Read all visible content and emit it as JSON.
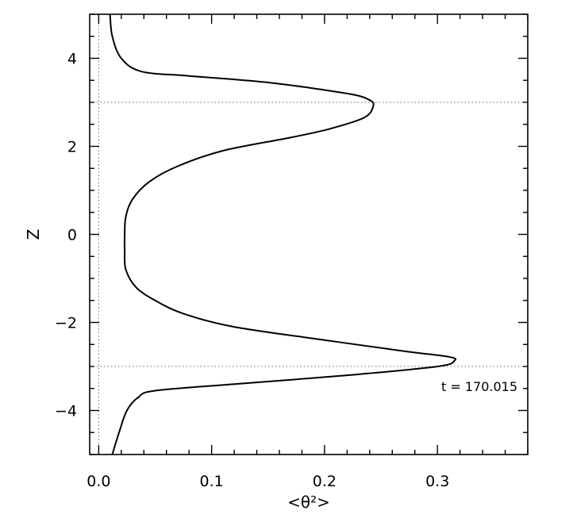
{
  "chart_data": {
    "type": "line",
    "title": "",
    "xlabel": "<θ²>",
    "ylabel": "Z",
    "xlim": [
      -0.008,
      0.38
    ],
    "ylim": [
      -5,
      5
    ],
    "xticks": [
      0.0,
      0.1,
      0.2,
      0.3
    ],
    "xtick_labels": [
      "0.0",
      "0.1",
      "0.2",
      "0.3"
    ],
    "yticks": [
      -4,
      -2,
      0,
      2,
      4
    ],
    "ytick_labels": [
      "−4",
      "−2",
      "0",
      "2",
      "4"
    ],
    "grid": false,
    "annotation": "t = 170.015",
    "reference_lines": {
      "vertical_x": [
        0.0
      ],
      "horizontal_y": [
        3.0,
        -3.0
      ]
    },
    "series": [
      {
        "x": [
          0.01,
          0.012,
          0.02,
          0.038,
          0.08,
          0.15,
          0.22,
          0.24,
          0.243,
          0.235,
          0.205,
          0.17,
          0.11,
          0.07,
          0.045,
          0.03,
          0.024,
          0.023,
          0.023,
          0.024,
          0.033,
          0.05,
          0.075,
          0.12,
          0.2,
          0.27,
          0.31,
          0.315,
          0.3,
          0.22,
          0.12,
          0.05,
          0.035,
          0.025,
          0.018,
          0.012
        ],
        "y": [
          5.0,
          4.5,
          4.0,
          3.7,
          3.6,
          3.45,
          3.2,
          3.05,
          2.9,
          2.65,
          2.4,
          2.2,
          1.9,
          1.55,
          1.2,
          0.8,
          0.4,
          0.0,
          -0.4,
          -0.8,
          -1.2,
          -1.5,
          -1.8,
          -2.1,
          -2.4,
          -2.65,
          -2.78,
          -2.87,
          -3.0,
          -3.2,
          -3.4,
          -3.55,
          -3.7,
          -4.0,
          -4.5,
          -5.0
        ]
      }
    ]
  }
}
